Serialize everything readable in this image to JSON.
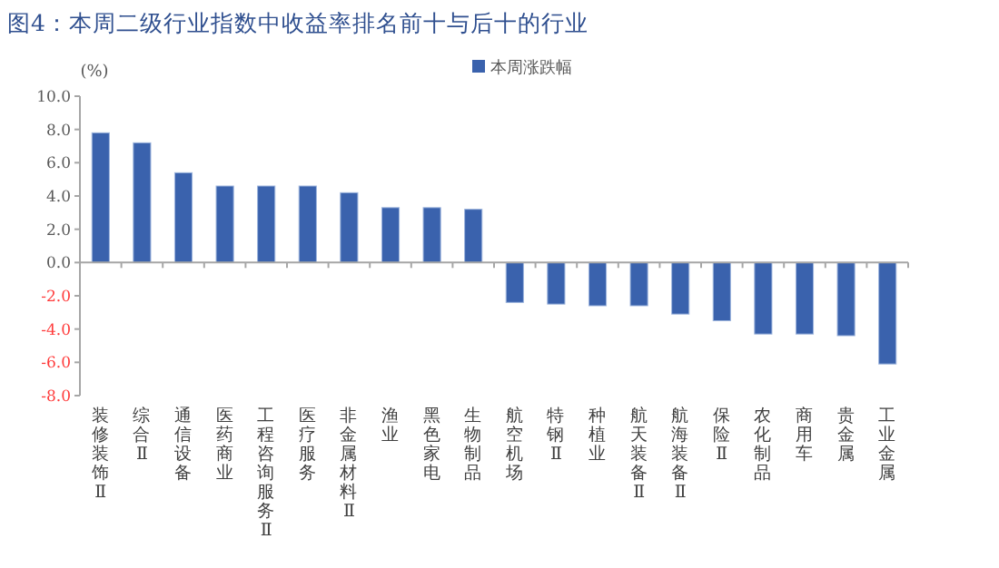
{
  "chart_data": {
    "type": "bar",
    "title": "图4：本周二级行业指数中收益率排名前十与后十的行业",
    "ylabel": "(%)",
    "categories": [
      "装修装饰Ⅱ",
      "综合Ⅱ",
      "通信设备",
      "医药商业",
      "工程咨询服务Ⅱ",
      "医疗服务",
      "非金属材料Ⅱ",
      "渔业",
      "黑色家电",
      "生物制品",
      "航空机场",
      "特钢Ⅱ",
      "种植业",
      "航天装备Ⅱ",
      "航海装备Ⅱ",
      "保险Ⅱ",
      "农化制品",
      "商用车",
      "贵金属",
      "工业金属"
    ],
    "series": [
      {
        "name": "本周涨跌幅",
        "color": "#3a62ad",
        "values": [
          7.8,
          7.2,
          5.4,
          4.6,
          4.6,
          4.6,
          4.2,
          3.3,
          3.3,
          3.2,
          -2.4,
          -2.5,
          -2.6,
          -2.6,
          -3.1,
          -3.5,
          -4.3,
          -4.3,
          -4.4,
          -6.1
        ]
      }
    ],
    "ylim": [
      -8,
      10
    ],
    "yticks": [
      {
        "value": -8,
        "label": "-8.0"
      },
      {
        "value": -6,
        "label": "-6.0"
      },
      {
        "value": -4,
        "label": "-4.0"
      },
      {
        "value": -2,
        "label": "-2.0"
      },
      {
        "value": 0,
        "label": "0.0"
      },
      {
        "value": 2,
        "label": "2.0"
      },
      {
        "value": 4,
        "label": "4.0"
      },
      {
        "value": 6,
        "label": "6.0"
      },
      {
        "value": 8,
        "label": "8.0"
      },
      {
        "value": 10,
        "label": "10.0"
      }
    ],
    "legend": "top"
  }
}
